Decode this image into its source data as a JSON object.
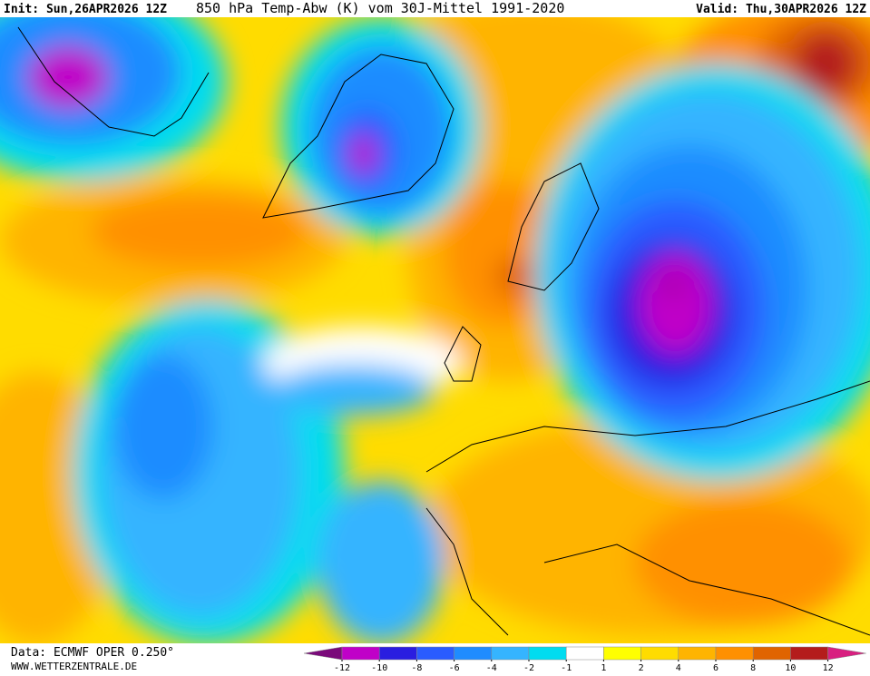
{
  "header": {
    "init": "Init: Sun,26APR2026 12Z",
    "title": "850 hPa Temp-Abw (K) vom 30J-Mittel 1991-2020",
    "valid": "Valid: Thu,30APR2026 12Z"
  },
  "footer": {
    "source": "Data: ECMWF OPER 0.250°",
    "url": "WWW.WETTERZENTRALE.DE"
  },
  "legend": {
    "ticks": [
      -12,
      -10,
      -8,
      -6,
      -4,
      -2,
      -1,
      1,
      2,
      4,
      6,
      8,
      10,
      12
    ],
    "colors": [
      "#7a0a7a",
      "#c000c8",
      "#2a1ee0",
      "#2a5cff",
      "#1f8cff",
      "#35b4ff",
      "#00dcf0",
      "#ffffff",
      "#ffff00",
      "#ffdc00",
      "#ffb400",
      "#ff9000",
      "#e06400",
      "#b41c1c",
      "#d82080"
    ]
  }
}
